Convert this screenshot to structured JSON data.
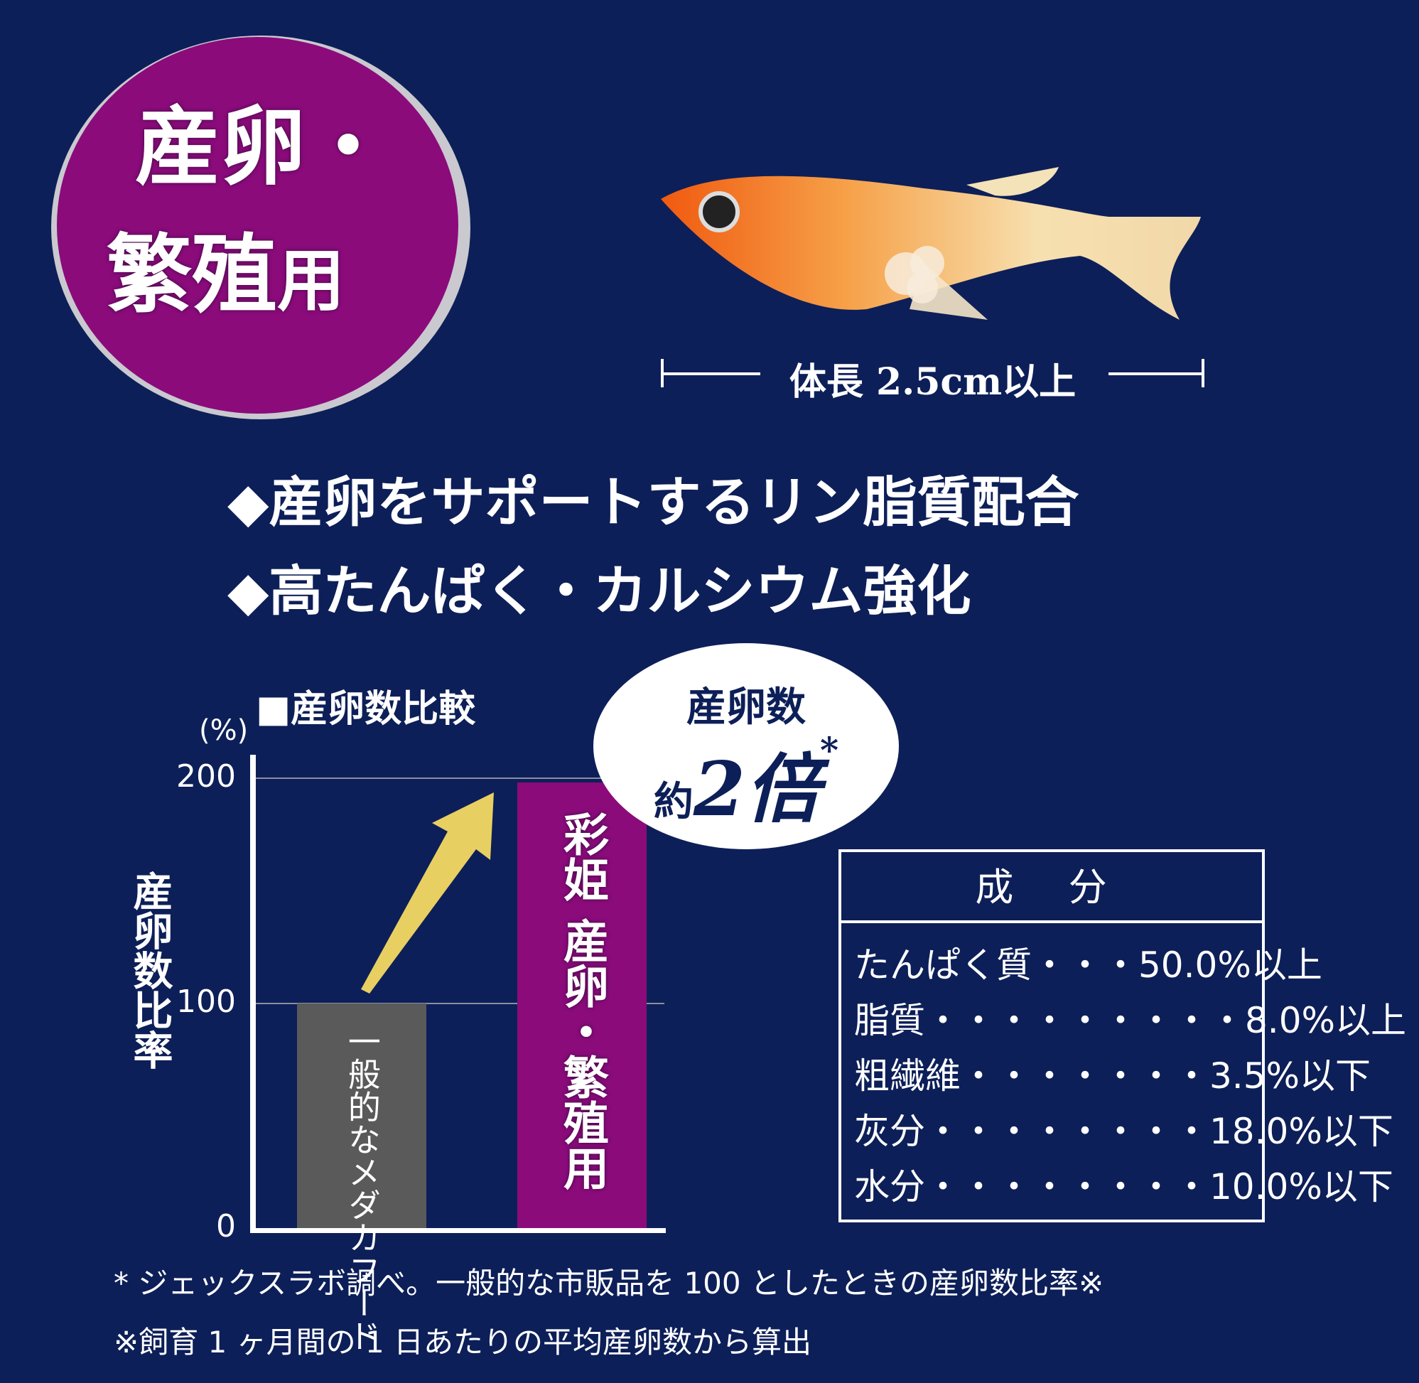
{
  "badge": {
    "line1": "産卵・",
    "line2": "繁殖",
    "line2_small": "用"
  },
  "fish": {
    "length_label": "体長 2.5cm以上"
  },
  "features": [
    "◆産卵をサポートするリン脂質配合",
    "◆高たんぱく・カルシウム強化"
  ],
  "bubble": {
    "line1": "産卵数",
    "line2_prefix": "約",
    "line2_big": "2倍",
    "line2_mark": "*"
  },
  "colors": {
    "background": "#0d1f58",
    "purple": "#8b0b7b",
    "grey_bar": "#5a5a5a",
    "arrow": "#e8cf62"
  },
  "chart_data": {
    "type": "bar",
    "title": "■産卵数比較",
    "unit": "(%)",
    "ylabel": "産卵数比率",
    "ylim": [
      0,
      200
    ],
    "yticks": [
      "0",
      "100",
      "200"
    ],
    "grid": true,
    "categories": [
      "一般的なメダカフード",
      "彩姫 産卵・繁殖用"
    ],
    "values": [
      100,
      198
    ],
    "bar_colors": [
      "#5a5a5a",
      "#8b0b7b"
    ]
  },
  "ingredients": {
    "title": "成 分",
    "rows": [
      {
        "name": "たんぱく質・・・",
        "value": "50.0%以上"
      },
      {
        "name": "脂質・・・・・・・・・",
        "value": "8.0%以上"
      },
      {
        "name": "粗繊維・・・・・・・",
        "value": "3.5%以下"
      },
      {
        "name": "灰分・・・・・・・・",
        "value": "18.0%以下"
      },
      {
        "name": "水分・・・・・・・・",
        "value": "10.0%以下"
      }
    ]
  },
  "footnotes": [
    "* ジェックスラボ調べ。一般的な市販品を 100 としたときの産卵数比率※",
    "※飼育 1 ヶ月間の 1 日あたりの平均産卵数から算出"
  ]
}
